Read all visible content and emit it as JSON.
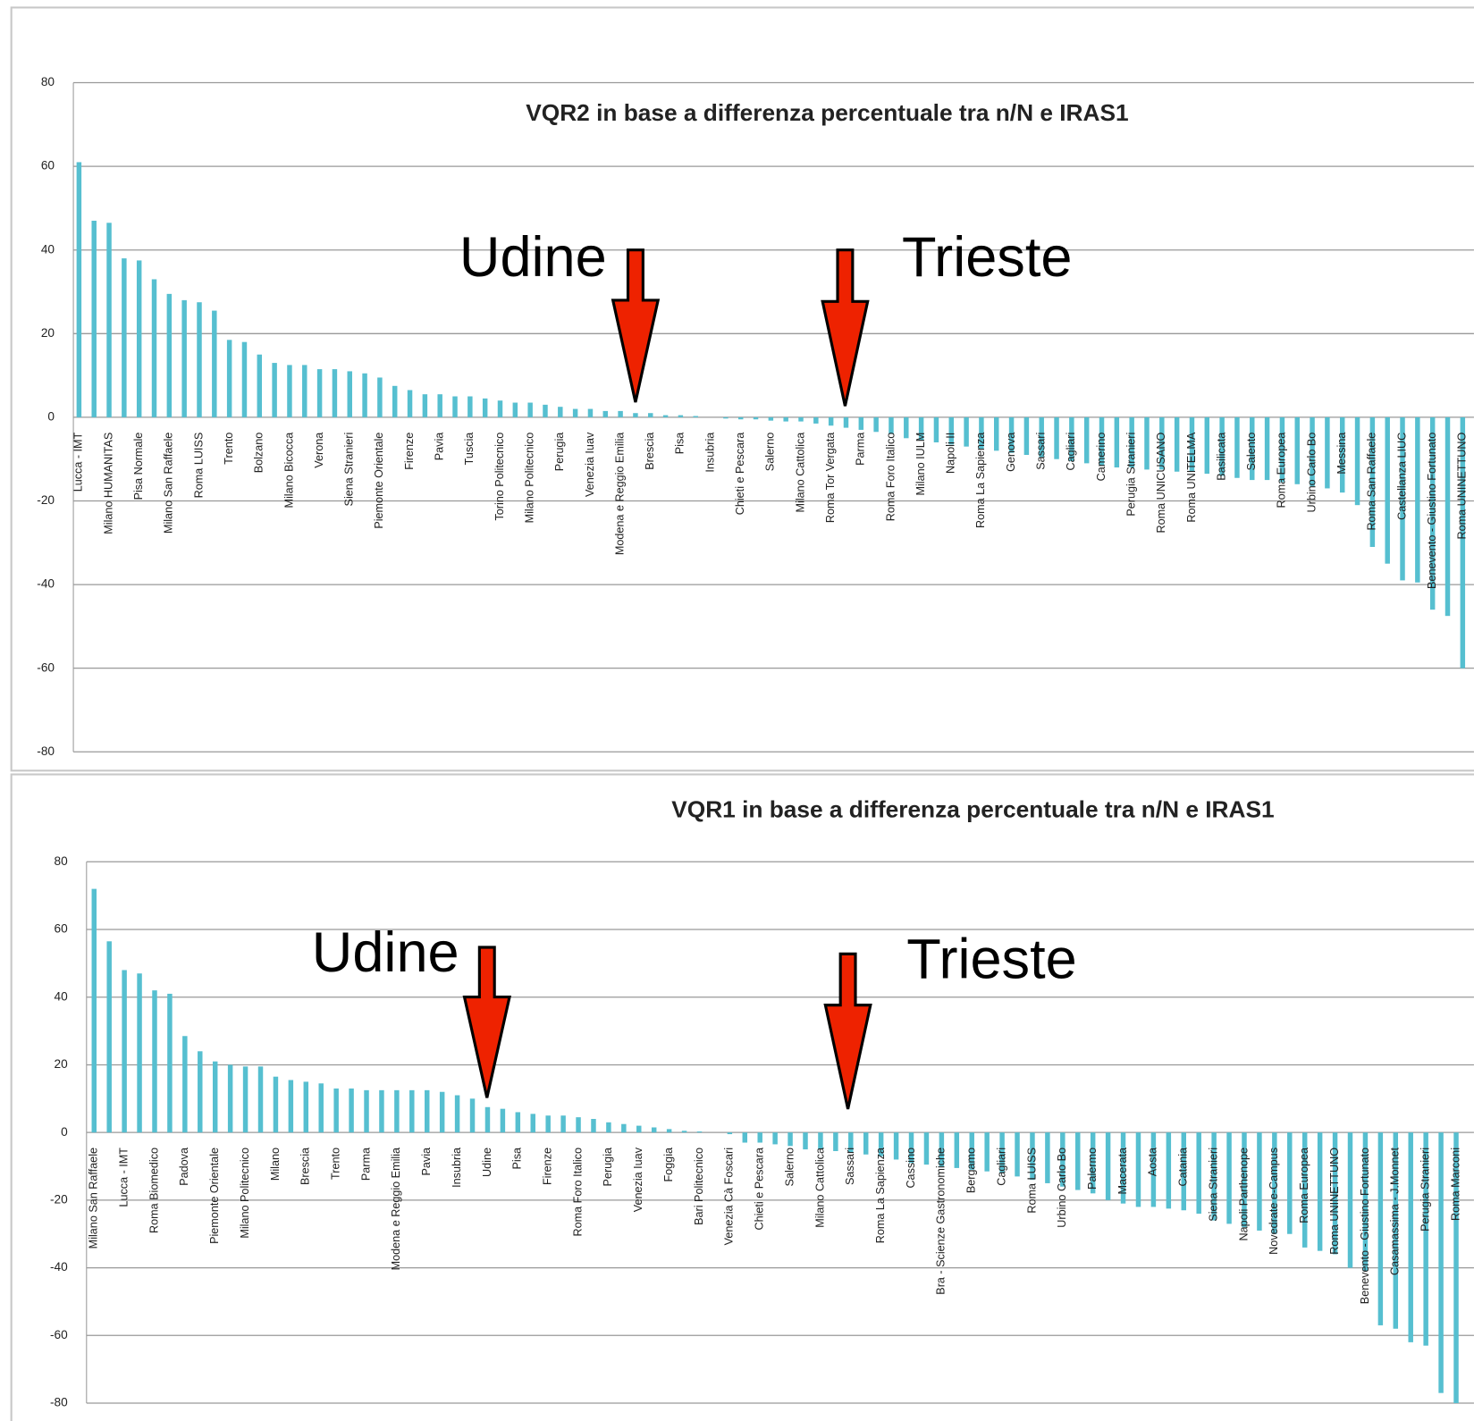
{
  "chart_data": [
    {
      "type": "bar",
      "title": "VQR2 in base a differenza percentuale tra n/N e IRAS1",
      "categories": [
        "Lucca - IMT",
        null,
        "Milano HUMANITAS",
        null,
        "Pisa Normale",
        null,
        "Milano San Raffaele",
        null,
        "Roma LUISS",
        null,
        "Trento",
        null,
        "Bolzano",
        null,
        "Milano Bicocca",
        null,
        "Verona",
        null,
        "Siena Stranieri",
        null,
        "Piemonte Orientale",
        null,
        "Firenze",
        null,
        "Pavia",
        null,
        "Tuscia",
        null,
        "Torino Politecnico",
        null,
        "Milano Politecnico",
        null,
        "Perugia",
        null,
        "Venezia Iuav",
        null,
        "Modena e Reggio Emilia",
        null,
        "Brescia",
        null,
        "Pisa",
        null,
        "Insubria",
        null,
        "Chieti e Pescara",
        null,
        "Salerno",
        null,
        "Milano Cattolica",
        null,
        "Roma Tor Vergata",
        null,
        "Parma",
        null,
        "Roma Foro Italico",
        null,
        "Milano IULM",
        null,
        "Napoli II",
        null,
        "Roma La Sapienza",
        null,
        "Genova",
        null,
        "Sassari",
        null,
        "Cagliari",
        null,
        "Camerino",
        null,
        "Perugia Stranieri",
        null,
        "Roma UNICUSANO",
        null,
        "Roma UNITELMA",
        null,
        "Basilicata",
        null,
        "Salento",
        null,
        "Roma Europea",
        null,
        "Urbino Carlo Bo",
        null,
        "Messina",
        null,
        "Roma San Raffaele",
        null,
        "Castellanza LIUC",
        null,
        "Benevento - Giustino Fortunato",
        null,
        "Roma UNINETTUNO"
      ],
      "values": [
        61,
        47,
        46.5,
        38,
        37.5,
        33,
        29.5,
        28,
        27.5,
        25.5,
        18.5,
        18,
        15,
        13,
        12.5,
        12.5,
        11.5,
        11.5,
        11,
        10.5,
        9.5,
        7.5,
        6.5,
        5.5,
        5.5,
        5,
        5,
        4.5,
        4,
        3.5,
        3.5,
        3,
        2.5,
        2,
        2,
        1.5,
        1.5,
        1,
        1,
        0.5,
        0.5,
        0.3,
        0,
        -0.3,
        -0.5,
        -0.5,
        -0.8,
        -1,
        -1,
        -1.5,
        -2,
        -2.5,
        -3,
        -3.5,
        -4,
        -5,
        -5.5,
        -6,
        -6.5,
        -7,
        -7.5,
        -8,
        -8.5,
        -9,
        -9.5,
        -10,
        -10.5,
        -11,
        -11.5,
        -12,
        -12,
        -12.5,
        -12.5,
        -13,
        -13,
        -13.5,
        -14,
        -14.5,
        -15,
        -15,
        -15.5,
        -16,
        -16.5,
        -17,
        -18,
        -21,
        -31,
        -35,
        -39,
        -39.5,
        -46,
        -47.5,
        -60
      ],
      "color": "#56bfd0",
      "ylim": [
        -80,
        80
      ],
      "yticks": [
        80,
        60,
        40,
        20,
        0,
        -20,
        -40,
        -60,
        -80
      ],
      "grid": true,
      "annotations": [
        "Udine",
        "Trieste"
      ]
    },
    {
      "type": "bar",
      "title": "VQR1 in base a differenza percentuale tra n/N e IRAS1",
      "categories": [
        "Milano San Raffaele",
        null,
        "Lucca - IMT",
        null,
        "Roma Biomedico",
        null,
        "Padova",
        null,
        "Piemonte Orientale",
        null,
        "Milano Politecnico",
        null,
        "Milano",
        null,
        "Brescia",
        null,
        "Trento",
        null,
        "Parma",
        null,
        "Modena e Reggio Emilia",
        null,
        "Pavia",
        null,
        "Insubria",
        null,
        "Udine",
        null,
        "Pisa",
        null,
        "Firenze",
        null,
        "Roma Foro Italico",
        null,
        "Perugia",
        null,
        "Venezia Iuav",
        null,
        "Foggia",
        null,
        "Bari Politecnico",
        null,
        "Venezia Cà Foscari",
        null,
        "Chieti e Pescara",
        null,
        "Salerno",
        null,
        "Milano Cattolica",
        null,
        "Sassari",
        null,
        "Roma La Sapienza",
        null,
        "Cassino",
        null,
        "Bra - Scienze Gastronomiche",
        null,
        "Bergamo",
        null,
        "Cagliari",
        null,
        "Roma LUISS",
        null,
        "Urbino Carlo Bo",
        null,
        "Palermo",
        null,
        "Macerata",
        null,
        "Aosta",
        null,
        "Catania",
        null,
        "Siena Stranieri",
        null,
        "Napoli Parthenope",
        null,
        "Novedrate e-Campus",
        null,
        "Roma Europea",
        null,
        "Roma UNINETTUNO",
        null,
        "Benevento - Giustino Fortunato",
        null,
        "Casamassima - J.Monnet",
        null,
        "Perugia Stranieri",
        null,
        "Roma Marconi"
      ],
      "values": [
        72,
        56.5,
        48,
        47,
        42,
        41,
        28.5,
        24,
        21,
        20,
        19.5,
        19.5,
        16.5,
        15.5,
        15,
        14.5,
        13,
        13,
        12.5,
        12.5,
        12.5,
        12.5,
        12.5,
        12,
        11,
        10,
        7.5,
        7,
        6,
        5.5,
        5,
        5,
        4.5,
        4,
        3,
        2.5,
        2,
        1.5,
        1,
        0.5,
        0.3,
        0,
        -0.5,
        -3,
        -3,
        -3.5,
        -4,
        -5,
        -5,
        -5.5,
        -6,
        -6.5,
        -7,
        -8,
        -9,
        -9.5,
        -10,
        -10.5,
        -11,
        -11.5,
        -12,
        -13,
        -14,
        -15,
        -16,
        -17,
        -18,
        -20,
        -21,
        -22,
        -22,
        -22.5,
        -23,
        -24,
        -26,
        -27,
        -28,
        -29,
        -30,
        -30,
        -34,
        -35,
        -36,
        -40,
        -41,
        -57,
        -58,
        -62,
        -63,
        -77,
        -80
      ],
      "color": "#56bfd0",
      "ylim": [
        -80,
        80
      ],
      "yticks": [
        80,
        60,
        40,
        20,
        0,
        -20,
        -40,
        -60,
        -80
      ],
      "grid": true,
      "annotations": [
        "Udine",
        "Trieste"
      ]
    }
  ]
}
